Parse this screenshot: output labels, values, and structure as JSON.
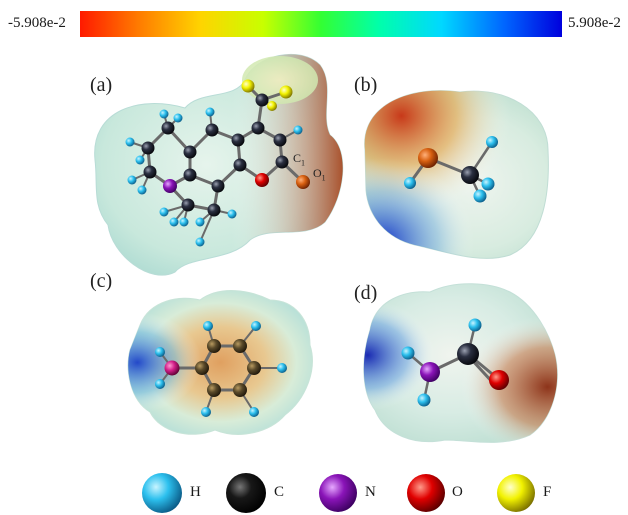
{
  "colorbar": {
    "min_label": "-5.908e-2",
    "max_label": "5.908e-2",
    "stops": [
      "#ff1a00",
      "#ff7a00",
      "#ffd400",
      "#c8ff00",
      "#33ff33",
      "#00ffaa",
      "#00d8ff",
      "#0066ff",
      "#0000dd"
    ]
  },
  "panels": {
    "a": "(a)",
    "b": "(b)",
    "c": "(c)",
    "d": "(d)"
  },
  "annotations": {
    "c1": "C",
    "c1_sub": "1",
    "o1": "O",
    "o1_sub": "1"
  },
  "legend": [
    {
      "symbol": "H",
      "color": "#26bdf5"
    },
    {
      "symbol": "C",
      "color": "#111111"
    },
    {
      "symbol": "N",
      "color": "#8a14b8"
    },
    {
      "symbol": "O",
      "color": "#e00000"
    },
    {
      "symbol": "F",
      "color": "#f2f200"
    }
  ],
  "atom_colors": {
    "H": "#3cc9e6",
    "C": "#2a2f40",
    "N": "#8a14b8",
    "O": "#d82000",
    "F": "#f0e000"
  }
}
